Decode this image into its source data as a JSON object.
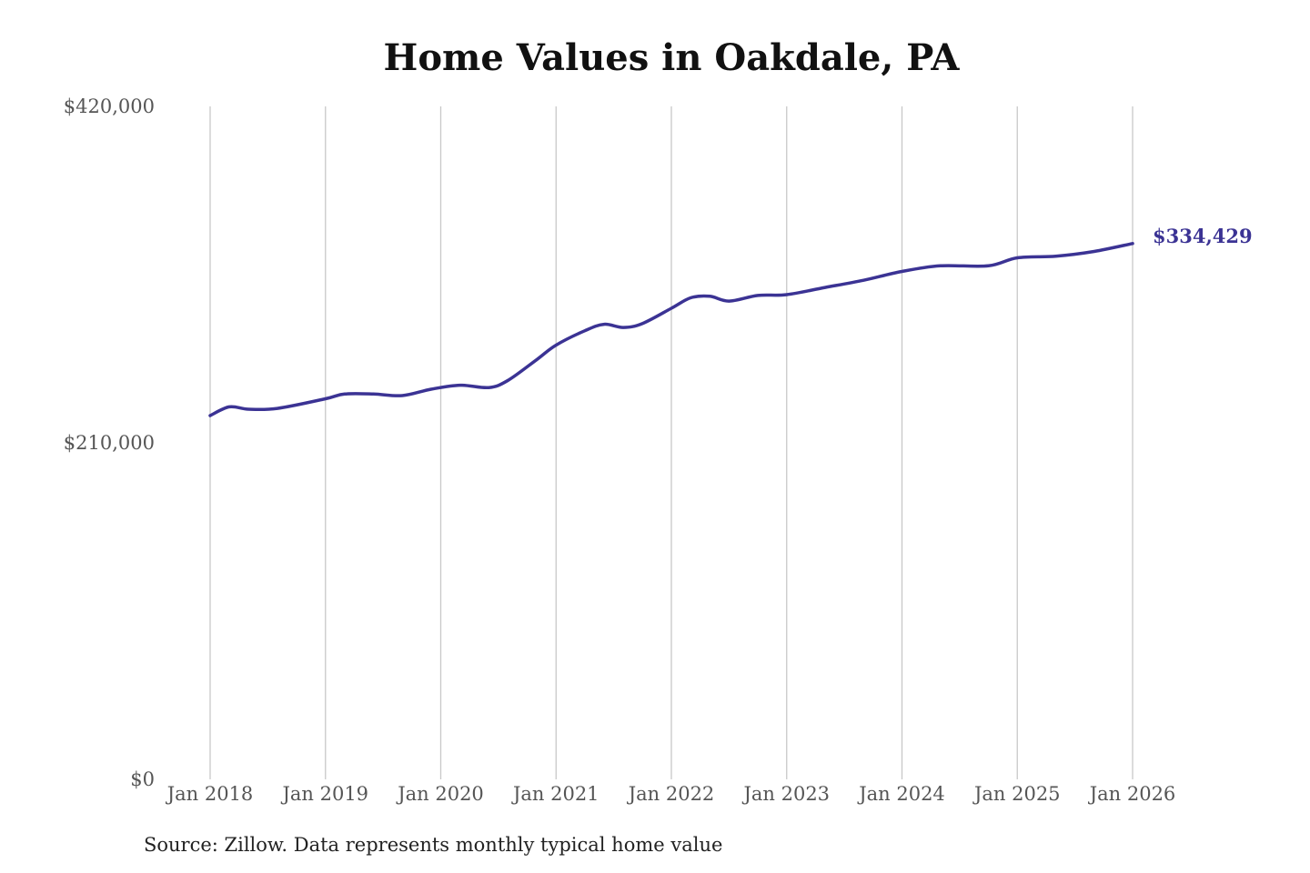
{
  "chart_data": {
    "type": "line",
    "title": "Home Values in Oakdale, PA",
    "xlabel": "",
    "ylabel": "",
    "ylim": [
      0,
      420000
    ],
    "y_ticks": [
      {
        "value": 0,
        "label": "$0"
      },
      {
        "value": 210000,
        "label": "$210,000"
      },
      {
        "value": 420000,
        "label": "$420,000"
      }
    ],
    "x_range": [
      "2018-01",
      "2026-01"
    ],
    "x_ticks": [
      {
        "date": "2018-01",
        "label": "Jan 2018"
      },
      {
        "date": "2019-01",
        "label": "Jan 2019"
      },
      {
        "date": "2020-01",
        "label": "Jan 2020"
      },
      {
        "date": "2021-01",
        "label": "Jan 2021"
      },
      {
        "date": "2022-01",
        "label": "Jan 2022"
      },
      {
        "date": "2023-01",
        "label": "Jan 2023"
      },
      {
        "date": "2024-01",
        "label": "Jan 2024"
      },
      {
        "date": "2025-01",
        "label": "Jan 2025"
      },
      {
        "date": "2026-01",
        "label": "Jan 2026"
      }
    ],
    "grid": {
      "vertical": true,
      "horizontal": false
    },
    "series": [
      {
        "color": "#3b3394",
        "points": [
          {
            "x": "2018-01",
            "y": 227000
          },
          {
            "x": "2018-03",
            "y": 232500
          },
          {
            "x": "2018-05",
            "y": 231000
          },
          {
            "x": "2018-08",
            "y": 231500
          },
          {
            "x": "2019-01",
            "y": 237500
          },
          {
            "x": "2019-03",
            "y": 240500
          },
          {
            "x": "2019-06",
            "y": 240500
          },
          {
            "x": "2019-09",
            "y": 239500
          },
          {
            "x": "2019-12",
            "y": 243500
          },
          {
            "x": "2020-03",
            "y": 246000
          },
          {
            "x": "2020-06",
            "y": 244500
          },
          {
            "x": "2020-08",
            "y": 249000
          },
          {
            "x": "2020-11",
            "y": 262000
          },
          {
            "x": "2021-01",
            "y": 271000
          },
          {
            "x": "2021-04",
            "y": 280000
          },
          {
            "x": "2021-06",
            "y": 284000
          },
          {
            "x": "2021-08",
            "y": 282000
          },
          {
            "x": "2021-10",
            "y": 284500
          },
          {
            "x": "2022-01",
            "y": 294000
          },
          {
            "x": "2022-03",
            "y": 300500
          },
          {
            "x": "2022-05",
            "y": 301500
          },
          {
            "x": "2022-07",
            "y": 298500
          },
          {
            "x": "2022-10",
            "y": 302000
          },
          {
            "x": "2023-01",
            "y": 302500
          },
          {
            "x": "2023-05",
            "y": 307000
          },
          {
            "x": "2023-09",
            "y": 311500
          },
          {
            "x": "2024-01",
            "y": 317000
          },
          {
            "x": "2024-05",
            "y": 320500
          },
          {
            "x": "2024-10",
            "y": 320500
          },
          {
            "x": "2025-01",
            "y": 325500
          },
          {
            "x": "2025-05",
            "y": 326500
          },
          {
            "x": "2025-09",
            "y": 329500
          },
          {
            "x": "2026-01",
            "y": 334429
          }
        ]
      }
    ],
    "end_label": "$334,429",
    "source": "Source: Zillow. Data represents monthly typical home value"
  }
}
